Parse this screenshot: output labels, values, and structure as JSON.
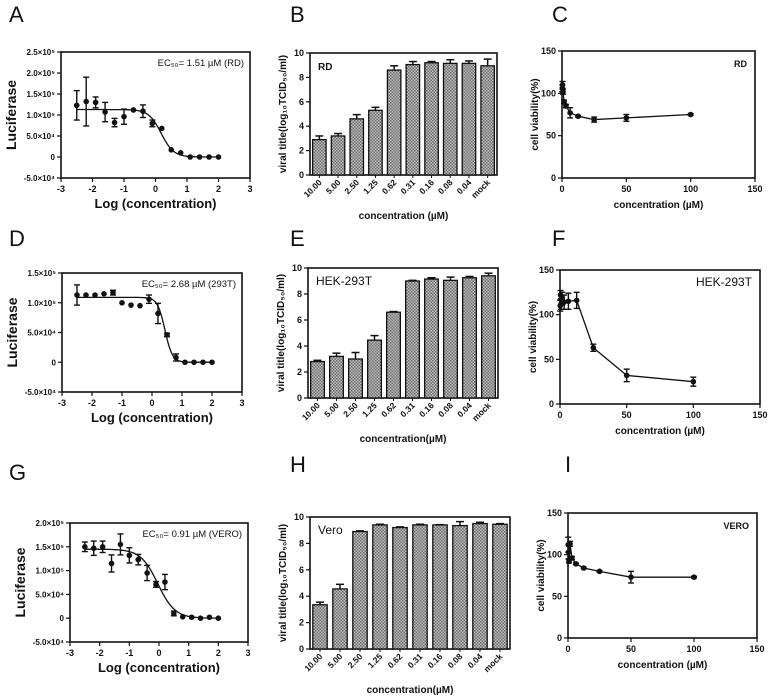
{
  "panel_labels": [
    "A",
    "B",
    "C",
    "D",
    "E",
    "F",
    "G",
    "H",
    "I"
  ],
  "chart_data": [
    {
      "panel": "A",
      "type": "scatter",
      "xlabel": "Log (concentration)",
      "ylabel": "Luciferase",
      "annotation": "EC₅₀= 1.51 µM (RD)",
      "xlim": [
        -3,
        3
      ],
      "xticks": [
        -3,
        -2,
        -1,
        0,
        1,
        2,
        3
      ],
      "ylim": [
        -50000,
        250000
      ],
      "yticks": [
        -50000,
        0,
        50000,
        100000,
        150000,
        200000,
        250000
      ],
      "ytick_labels": [
        "-5.0×10⁴",
        "0",
        "5.0×10⁴",
        "1.0×10⁵",
        "1.5×10⁵",
        "2.0×10⁵",
        "2.5×10⁵"
      ],
      "x": [
        -2.5,
        -2.2,
        -1.9,
        -1.6,
        -1.3,
        -1.0,
        -0.7,
        -0.4,
        -0.1,
        0.2,
        0.5,
        0.8,
        1.1,
        1.4,
        1.7,
        2.0
      ],
      "y": [
        123000,
        132000,
        130000,
        107000,
        82000,
        96000,
        112000,
        109000,
        80000,
        68000,
        17000,
        10000,
        0,
        0,
        0,
        0
      ],
      "err": [
        35000,
        58000,
        13000,
        23000,
        10000,
        18000,
        0,
        15000,
        8000,
        0,
        0,
        0,
        0,
        0,
        0,
        0
      ],
      "fit": {
        "top": 113000,
        "bottom": 0,
        "log_ec50": 0.18,
        "hill": -2.2
      }
    },
    {
      "panel": "B",
      "type": "bar",
      "xlabel": "concentration (µM)",
      "ylabel": "viral title(log₁₀TCID₅₀/ml)",
      "annotation": "RD",
      "categories": [
        "10.00",
        "5.00",
        "2.50",
        "1.25",
        "0.62",
        "0.31",
        "0.16",
        "0.08",
        "0.04",
        "mock"
      ],
      "values": [
        2.9,
        3.2,
        4.6,
        5.3,
        8.6,
        9.05,
        9.2,
        9.15,
        9.15,
        8.95
      ],
      "err": [
        0.3,
        0.2,
        0.35,
        0.25,
        0.35,
        0.25,
        0.1,
        0.3,
        0.2,
        0.55
      ],
      "ylim": [
        0,
        10
      ],
      "yticks": [
        0,
        2,
        4,
        6,
        8,
        10
      ]
    },
    {
      "panel": "C",
      "type": "line",
      "xlabel": "concentration (µM)",
      "ylabel": "cell viability(%)",
      "annotation": "RD",
      "xlim": [
        0,
        150
      ],
      "xticks": [
        0,
        50,
        100,
        150
      ],
      "ylim": [
        0,
        150
      ],
      "yticks": [
        0,
        50,
        100,
        150
      ],
      "x": [
        0.2,
        0.4,
        0.8,
        1.6,
        3.1,
        6.3,
        12.5,
        25,
        50,
        100
      ],
      "y": [
        106,
        110,
        102,
        90,
        85,
        77,
        73,
        69,
        71,
        75
      ],
      "err": [
        4,
        4,
        3,
        2,
        2,
        6,
        1,
        3,
        4,
        1
      ]
    },
    {
      "panel": "D",
      "type": "scatter",
      "xlabel": "Log (concentration)",
      "ylabel": "Luciferase",
      "annotation": "EC₅₀= 2.68 µM (293T)",
      "xlim": [
        -3,
        3
      ],
      "xticks": [
        -3,
        -2,
        -1,
        0,
        1,
        2,
        3
      ],
      "ylim": [
        -50000,
        150000
      ],
      "yticks": [
        -50000,
        0,
        50000,
        100000,
        150000
      ],
      "ytick_labels": [
        "-5.0×10⁴",
        "0",
        "5.0×10⁴",
        "1.0×10⁵",
        "1.5×10⁵"
      ],
      "x": [
        -2.5,
        -2.2,
        -1.9,
        -1.6,
        -1.3,
        -1.0,
        -0.7,
        -0.4,
        -0.1,
        0.2,
        0.5,
        0.8,
        1.1,
        1.4,
        1.7,
        2.0
      ],
      "y": [
        113000,
        113000,
        113000,
        115000,
        117000,
        100000,
        96000,
        95000,
        106000,
        82000,
        46000,
        8000,
        0,
        0,
        0,
        0
      ],
      "err": [
        17000,
        0,
        0,
        0,
        4000,
        0,
        0,
        0,
        7000,
        17000,
        3000,
        6000,
        0,
        0,
        0,
        0
      ],
      "fit": {
        "top": 109000,
        "bottom": 0,
        "log_ec50": 0.43,
        "hill": -3.5
      }
    },
    {
      "panel": "E",
      "type": "bar",
      "xlabel": "concentration(µM)",
      "ylabel": "viral title(log₁₀TCID₅₀/ml)",
      "annotation": "HEK-293T",
      "categories": [
        "10.00",
        "5.00",
        "2.50",
        "1.25",
        "0.62",
        "0.31",
        "0.16",
        "0.08",
        "0.04",
        "mock"
      ],
      "values": [
        2.8,
        3.2,
        3.0,
        4.45,
        6.6,
        9.0,
        9.15,
        9.05,
        9.25,
        9.4
      ],
      "err": [
        0.1,
        0.25,
        0.5,
        0.35,
        0.05,
        0.05,
        0.1,
        0.25,
        0.1,
        0.2
      ],
      "ylim": [
        0,
        10
      ],
      "yticks": [
        0,
        2,
        4,
        6,
        8,
        10
      ]
    },
    {
      "panel": "F",
      "type": "line",
      "xlabel": "concentration (µM)",
      "ylabel": "cell viability(%)",
      "annotation": "HEK-293T",
      "xlim": [
        0,
        150
      ],
      "xticks": [
        0,
        50,
        100,
        150
      ],
      "ylim": [
        0,
        150
      ],
      "yticks": [
        0,
        50,
        100,
        150
      ],
      "x": [
        0.2,
        0.4,
        0.8,
        1.6,
        3.1,
        6.3,
        12.5,
        25,
        50,
        100
      ],
      "y": [
        110,
        122,
        112,
        118,
        114,
        115,
        116,
        63,
        32,
        25
      ],
      "err": [
        6,
        5,
        6,
        7,
        8,
        9,
        9,
        4,
        7,
        5
      ]
    },
    {
      "panel": "G",
      "type": "scatter",
      "xlabel": "Log (concentration)",
      "ylabel": "Luciferase",
      "annotation": "EC₅₀= 0.91 µM (VERO)",
      "xlim": [
        -3,
        3
      ],
      "xticks": [
        -3,
        -2,
        -1,
        0,
        1,
        2,
        3
      ],
      "ylim": [
        -50000,
        200000
      ],
      "yticks": [
        -50000,
        0,
        50000,
        100000,
        150000,
        200000
      ],
      "ytick_labels": [
        "-5.0×10⁴",
        "0",
        "5.0×10⁴",
        "1.0×10⁵",
        "1.5×10⁵",
        "2.0×10⁵"
      ],
      "x": [
        -2.5,
        -2.2,
        -1.9,
        -1.6,
        -1.3,
        -1.0,
        -0.7,
        -0.4,
        -0.1,
        0.2,
        0.5,
        0.8,
        1.1,
        1.4,
        1.7,
        2.0
      ],
      "y": [
        150000,
        147000,
        150000,
        115000,
        155000,
        132000,
        123000,
        95000,
        71000,
        76000,
        10000,
        3000,
        2000,
        0,
        2000,
        0
      ],
      "err": [
        10000,
        15000,
        12000,
        18000,
        22000,
        16000,
        11000,
        16000,
        6000,
        16000,
        5000,
        0,
        0,
        0,
        0,
        0
      ],
      "fit": {
        "top": 145000,
        "bottom": 0,
        "log_ec50": -0.04,
        "hill": -1.5
      }
    },
    {
      "panel": "H",
      "type": "bar",
      "xlabel": "concentration(µM)",
      "ylabel": "viral title(log₁₀TCID₅₀/ml)",
      "annotation": "Vero",
      "categories": [
        "10.00",
        "5.00",
        "2.50",
        "1.25",
        "0.62",
        "0.31",
        "0.16",
        "0.08",
        "0.04",
        "mock"
      ],
      "values": [
        3.35,
        4.55,
        8.9,
        9.4,
        9.2,
        9.4,
        9.4,
        9.35,
        9.5,
        9.45
      ],
      "err": [
        0.2,
        0.35,
        0.05,
        0.05,
        0.05,
        0.05,
        0.02,
        0.3,
        0.1,
        0.05
      ],
      "ylim": [
        0,
        10
      ],
      "yticks": [
        0,
        2,
        4,
        6,
        8,
        10
      ]
    },
    {
      "panel": "I",
      "type": "line",
      "xlabel": "concentration (µM)",
      "ylabel": "cell viability(%)",
      "annotation": "VERO",
      "xlim": [
        0,
        150
      ],
      "xticks": [
        0,
        50,
        100,
        150
      ],
      "ylim": [
        0,
        150
      ],
      "yticks": [
        0,
        50,
        100,
        150
      ],
      "x": [
        0.2,
        0.4,
        0.8,
        1.6,
        3.1,
        6.3,
        12.5,
        25,
        50,
        100
      ],
      "y": [
        112,
        103,
        92,
        113,
        96,
        89,
        84,
        80,
        73,
        73
      ],
      "err": [
        9,
        8,
        2,
        3,
        2,
        1,
        1,
        1,
        7,
        1
      ]
    }
  ]
}
